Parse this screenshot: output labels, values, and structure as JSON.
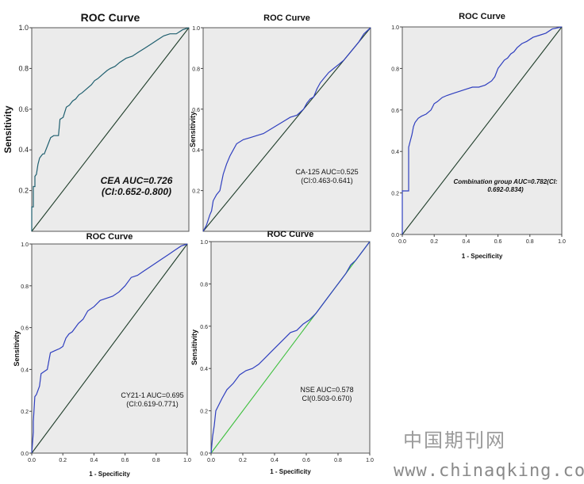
{
  "colors": {
    "plot_bg": "#ebebeb",
    "roc_line": "#2f3fbf",
    "roc_line_first": "#1f5f6f",
    "reference_line": "#1f3d2a",
    "reference_line_nse": "#3cbf3c"
  },
  "watermark": {
    "chinese": "中国期刊网",
    "url": "www.chinaqking.com"
  },
  "chart_data": [
    {
      "type": "line",
      "title": "ROC Curve",
      "xlabel": "",
      "ylabel": "Sensitivity",
      "annotation": [
        "CEA AUC=0.726",
        "(CI:0.652-0.800)"
      ],
      "y_ticks": [
        "0.2",
        "0.4",
        "0.6",
        "0.8",
        "1.0"
      ],
      "x_ticks": [],
      "xlim": [
        0,
        1
      ],
      "ylim": [
        0,
        1
      ],
      "x": [
        0,
        0,
        0.01,
        0.01,
        0.02,
        0.02,
        0.03,
        0.04,
        0.05,
        0.06,
        0.07,
        0.08,
        0.1,
        0.12,
        0.14,
        0.17,
        0.18,
        0.2,
        0.22,
        0.24,
        0.26,
        0.28,
        0.3,
        0.32,
        0.35,
        0.38,
        0.4,
        0.42,
        0.45,
        0.48,
        0.5,
        0.53,
        0.56,
        0.6,
        0.64,
        0.68,
        0.72,
        0.76,
        0.8,
        0.84,
        0.88,
        0.92,
        0.96,
        1.0
      ],
      "y": [
        0,
        0.12,
        0.12,
        0.22,
        0.22,
        0.27,
        0.28,
        0.33,
        0.36,
        0.37,
        0.38,
        0.38,
        0.42,
        0.46,
        0.47,
        0.47,
        0.55,
        0.56,
        0.61,
        0.62,
        0.64,
        0.65,
        0.67,
        0.68,
        0.7,
        0.72,
        0.74,
        0.75,
        0.77,
        0.79,
        0.8,
        0.81,
        0.83,
        0.85,
        0.86,
        0.88,
        0.9,
        0.92,
        0.94,
        0.96,
        0.97,
        0.97,
        0.99,
        1.0
      ]
    },
    {
      "type": "line",
      "title": "ROC Curve",
      "xlabel": "",
      "ylabel": "Sensitivity",
      "annotation": [
        "CA-125 AUC=0.525",
        "(CI:0.463-0.641)"
      ],
      "y_ticks": [
        "0.2",
        "0.4",
        "0.6",
        "0.8",
        "1.0"
      ],
      "x_ticks": [],
      "xlim": [
        0,
        1
      ],
      "ylim": [
        0,
        1
      ],
      "x": [
        0,
        0.02,
        0.04,
        0.05,
        0.06,
        0.08,
        0.1,
        0.12,
        0.14,
        0.16,
        0.18,
        0.2,
        0.24,
        0.28,
        0.32,
        0.36,
        0.4,
        0.44,
        0.48,
        0.52,
        0.56,
        0.6,
        0.62,
        0.64,
        0.66,
        0.68,
        0.7,
        0.72,
        0.75,
        0.78,
        0.81,
        0.84,
        0.87,
        0.9,
        0.93,
        0.96,
        1.0
      ],
      "y": [
        0,
        0.03,
        0.08,
        0.1,
        0.15,
        0.18,
        0.2,
        0.28,
        0.33,
        0.37,
        0.4,
        0.43,
        0.45,
        0.46,
        0.47,
        0.48,
        0.5,
        0.52,
        0.54,
        0.56,
        0.57,
        0.6,
        0.63,
        0.65,
        0.66,
        0.7,
        0.73,
        0.75,
        0.78,
        0.8,
        0.82,
        0.84,
        0.87,
        0.9,
        0.93,
        0.97,
        1.0
      ]
    },
    {
      "type": "line",
      "title": "ROC Curve",
      "xlabel": "1 - Specificity",
      "ylabel": "",
      "annotation": [
        "Combination group AUC=0.782(CI:",
        "0.692-0.834)"
      ],
      "y_ticks": [
        "0.0",
        "0.2",
        "0.4",
        "0.6",
        "0.8",
        "1.0"
      ],
      "x_ticks": [
        "0.0",
        "0.2",
        "0.4",
        "0.6",
        "0.8",
        "1.0"
      ],
      "xlim": [
        0,
        1
      ],
      "ylim": [
        0,
        1
      ],
      "x": [
        0,
        0,
        0.04,
        0.04,
        0.05,
        0.06,
        0.07,
        0.08,
        0.1,
        0.12,
        0.15,
        0.18,
        0.2,
        0.22,
        0.25,
        0.28,
        0.32,
        0.36,
        0.4,
        0.44,
        0.48,
        0.52,
        0.56,
        0.58,
        0.6,
        0.62,
        0.64,
        0.66,
        0.68,
        0.7,
        0.72,
        0.75,
        0.78,
        0.82,
        0.86,
        0.9,
        0.94,
        1.0
      ],
      "y": [
        0,
        0.21,
        0.21,
        0.42,
        0.45,
        0.48,
        0.52,
        0.54,
        0.56,
        0.57,
        0.58,
        0.6,
        0.63,
        0.64,
        0.66,
        0.67,
        0.68,
        0.69,
        0.7,
        0.71,
        0.71,
        0.72,
        0.74,
        0.76,
        0.8,
        0.82,
        0.84,
        0.85,
        0.87,
        0.88,
        0.9,
        0.92,
        0.93,
        0.95,
        0.96,
        0.97,
        0.99,
        1.0
      ]
    },
    {
      "type": "line",
      "title": "ROC Curve",
      "xlabel": "1 - Specificity",
      "ylabel": "Sensitivity",
      "annotation": [
        "CY21-1 AUC=0.695",
        "(CI:0.619-0.771)"
      ],
      "y_ticks": [
        "0.0",
        "0.2",
        "0.4",
        "0.6",
        "0.8",
        "1.0"
      ],
      "x_ticks": [
        "0.0",
        "0.2",
        "0.4",
        "0.6",
        "0.8",
        "1.0"
      ],
      "xlim": [
        0,
        1
      ],
      "ylim": [
        0,
        1
      ],
      "x": [
        0,
        0.01,
        0.01,
        0.02,
        0.03,
        0.05,
        0.06,
        0.08,
        0.1,
        0.12,
        0.15,
        0.18,
        0.2,
        0.22,
        0.24,
        0.26,
        0.28,
        0.3,
        0.33,
        0.36,
        0.4,
        0.44,
        0.48,
        0.52,
        0.56,
        0.6,
        0.64,
        0.68,
        0.72,
        0.76,
        0.8,
        0.84,
        0.88,
        0.92,
        0.96,
        1.0
      ],
      "y": [
        0,
        0.1,
        0.15,
        0.27,
        0.28,
        0.32,
        0.38,
        0.39,
        0.4,
        0.48,
        0.49,
        0.5,
        0.51,
        0.55,
        0.57,
        0.58,
        0.6,
        0.62,
        0.64,
        0.68,
        0.7,
        0.73,
        0.74,
        0.75,
        0.77,
        0.8,
        0.84,
        0.85,
        0.87,
        0.89,
        0.91,
        0.93,
        0.95,
        0.97,
        0.99,
        1.0
      ]
    },
    {
      "type": "line",
      "title": "ROC Curve",
      "xlabel": "1 - Specificity",
      "ylabel": "Sensitivity",
      "annotation": [
        "NSE AUC=0.578",
        "CI(0.503-0.670)"
      ],
      "y_ticks": [
        "0.0",
        "0.2",
        "0.4",
        "0.6",
        "0.8",
        "1.0"
      ],
      "x_ticks": [
        "0.0",
        "0.2",
        "0.4",
        "0.6",
        "0.8",
        "1.0"
      ],
      "xlim": [
        0,
        1
      ],
      "ylim": [
        0,
        1
      ],
      "x": [
        0,
        0.01,
        0.02,
        0.03,
        0.05,
        0.07,
        0.1,
        0.14,
        0.18,
        0.22,
        0.26,
        0.3,
        0.34,
        0.38,
        0.42,
        0.46,
        0.5,
        0.54,
        0.58,
        0.62,
        0.66,
        0.7,
        0.74,
        0.78,
        0.82,
        0.85,
        0.88,
        0.91,
        0.94,
        0.97,
        1.0
      ],
      "y": [
        0,
        0.08,
        0.13,
        0.2,
        0.23,
        0.26,
        0.3,
        0.33,
        0.37,
        0.39,
        0.4,
        0.42,
        0.45,
        0.48,
        0.51,
        0.54,
        0.57,
        0.58,
        0.61,
        0.63,
        0.66,
        0.7,
        0.74,
        0.78,
        0.82,
        0.85,
        0.89,
        0.91,
        0.94,
        0.97,
        1.0
      ]
    }
  ]
}
